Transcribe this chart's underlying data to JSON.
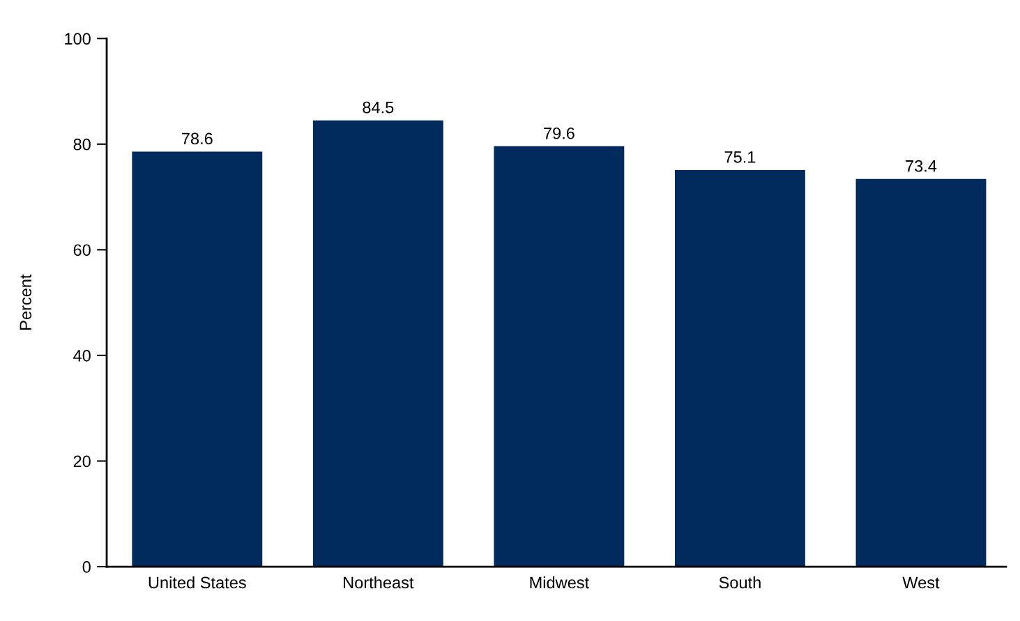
{
  "chart_data": {
    "type": "bar",
    "ylabel": "Percent",
    "categories": [
      "United States",
      "Northeast",
      "Midwest",
      "South",
      "West"
    ],
    "values": [
      78.6,
      84.5,
      79.6,
      75.1,
      73.4
    ],
    "color": "#002b5c",
    "ylim": [
      0,
      100
    ],
    "yticks": [
      0,
      20,
      40,
      60,
      80,
      100
    ],
    "data_labels": true,
    "grid": false,
    "legend": false
  }
}
